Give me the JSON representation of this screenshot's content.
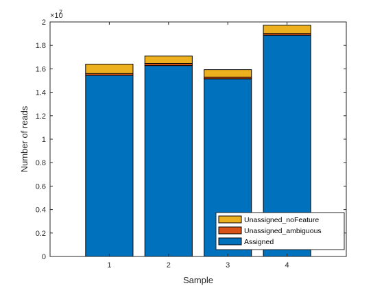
{
  "chart_data": {
    "type": "bar",
    "stacked": true,
    "categories": [
      "1",
      "2",
      "3",
      "4"
    ],
    "series": [
      {
        "name": "Assigned",
        "color": "#0072BD",
        "values": [
          15450000,
          16280000,
          15150000,
          18870000
        ]
      },
      {
        "name": "Unassigned_ambiguous",
        "color": "#D95319",
        "values": [
          150000,
          180000,
          150000,
          150000
        ]
      },
      {
        "name": "Unassigned_noFeature",
        "color": "#EDB120",
        "values": [
          800000,
          630000,
          630000,
          700000
        ]
      }
    ],
    "xlabel": "Sample",
    "ylabel": "Number of reads",
    "xlim": [
      0,
      5
    ],
    "ylim": [
      0,
      20000000
    ],
    "y_tick_labels": [
      "0",
      "0.2",
      "0.4",
      "0.6",
      "0.8",
      "1",
      "1.2",
      "1.4",
      "1.6",
      "1.8",
      "2"
    ],
    "y_exponent_base": "×10",
    "y_exponent_power": "7",
    "legend_order": [
      "Unassigned_noFeature",
      "Unassigned_ambiguous",
      "Assigned"
    ],
    "legend_position": "bottom-right",
    "grid": false
  }
}
